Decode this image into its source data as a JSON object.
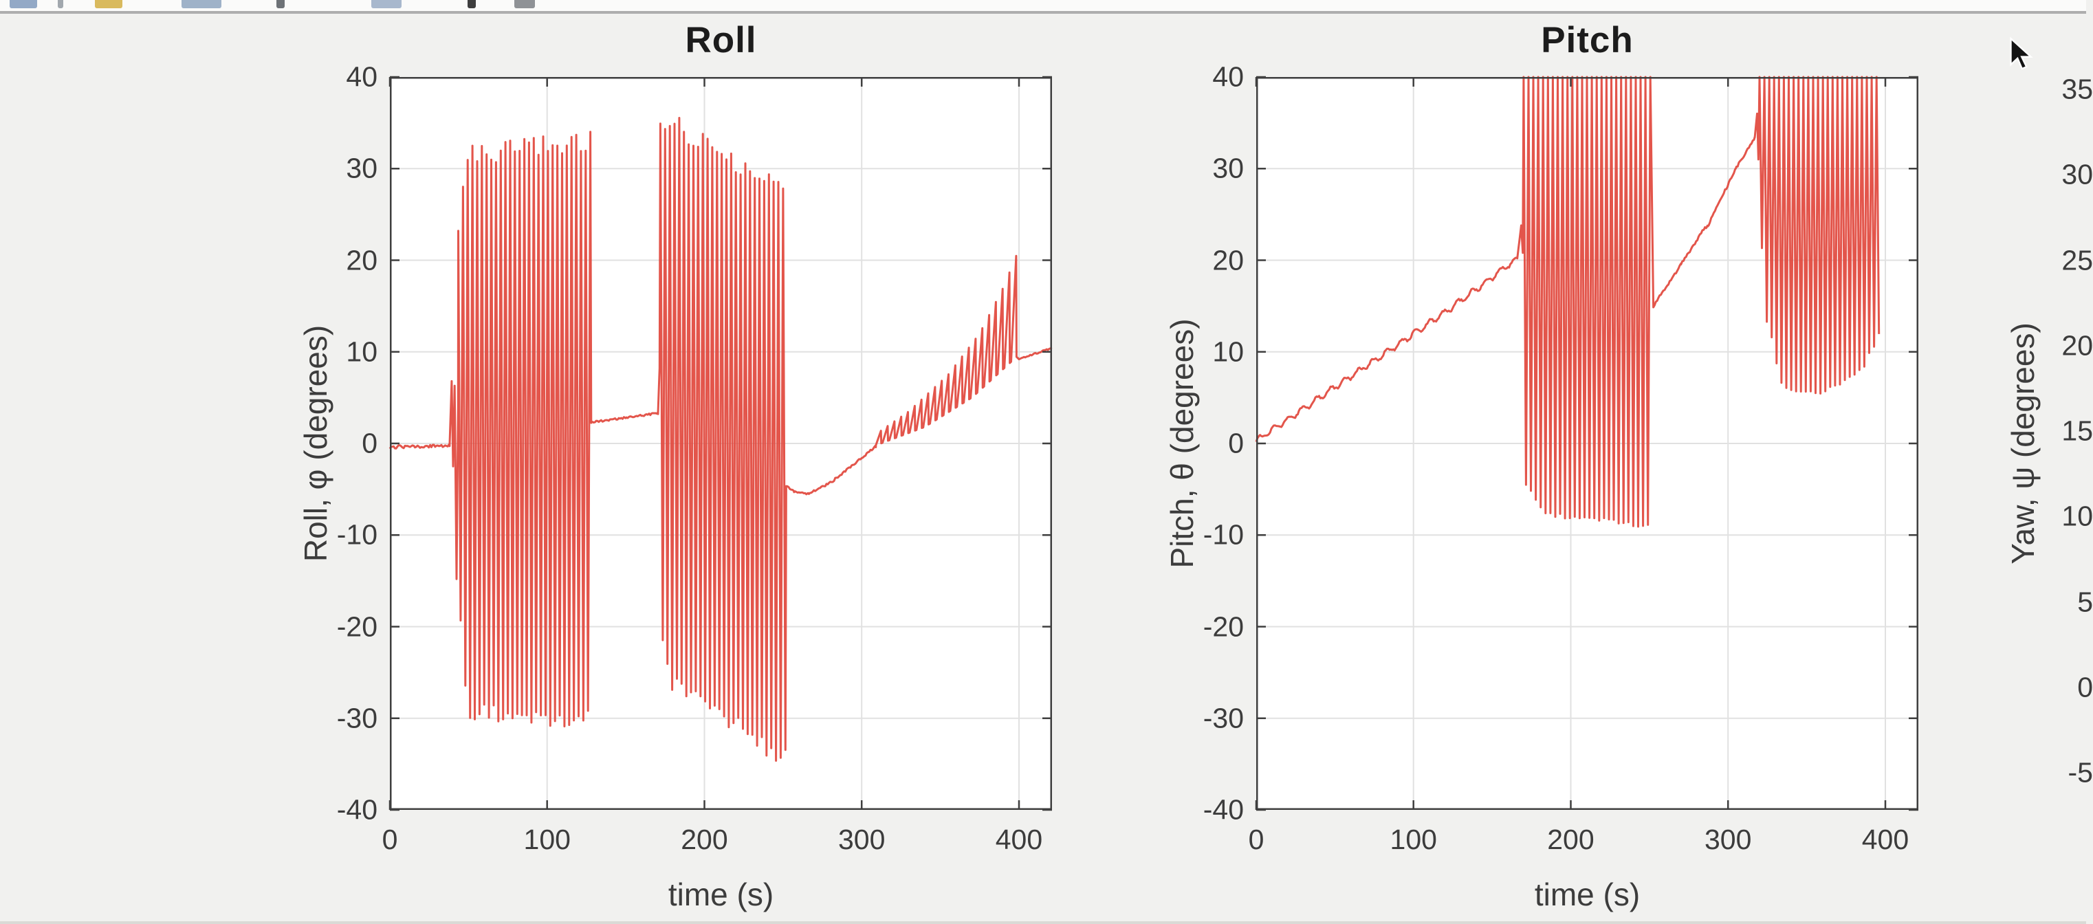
{
  "window": {
    "cursor": "arrow-pointer"
  },
  "toolbar": {
    "icons": [
      {
        "name": "new-doc-icon",
        "x": 14,
        "w": 40,
        "color": "#93a9c6"
      },
      {
        "name": "toolbar-sliver-icon",
        "x": 84,
        "w": 8,
        "color": "#a2a8ae"
      },
      {
        "name": "open-folder-icon",
        "x": 138,
        "w": 40,
        "color": "#d9ba5e"
      },
      {
        "name": "save-icon",
        "x": 264,
        "w": 58,
        "color": "#9fb2c8"
      },
      {
        "name": "print-icon",
        "x": 402,
        "w": 12,
        "color": "#6e7277"
      },
      {
        "name": "zoom-tools-icon",
        "x": 540,
        "w": 44,
        "color": "#a8b8cd"
      },
      {
        "name": "pointer-tool-icon",
        "x": 680,
        "w": 12,
        "color": "#3e3e3e"
      },
      {
        "name": "pan-tool-icon",
        "x": 748,
        "w": 30,
        "color": "#8f9296"
      }
    ]
  },
  "figure": {
    "background": "#f1f1ef",
    "plot_background": "#ffffff",
    "grid_color": "#e1e1e1",
    "axis_color": "#3f3f3f",
    "text_color": "#3c3c3c",
    "line_color": "#e1473c"
  },
  "chart_data": [
    {
      "type": "line",
      "title": "Roll",
      "xlabel": "time (s)",
      "ylabel": "Roll, φ (degrees)",
      "xlim": [
        0,
        421
      ],
      "ylim": [
        -40,
        40
      ],
      "xticks": [
        0,
        100,
        200,
        300,
        400
      ],
      "yticks": [
        40,
        30,
        20,
        10,
        0,
        -10,
        -20,
        -30,
        -40
      ],
      "grid": true,
      "legend": null,
      "series": [
        {
          "name": "roll",
          "color": "#e1473c",
          "segments": [
            {
              "type": "line",
              "pts": [
                [
                  0,
                  -0.4
                ],
                [
                  20,
                  -0.3
                ],
                [
                  38,
                  -0.2
                ]
              ],
              "noise": 0.18
            },
            {
              "type": "line",
              "pts": [
                [
                  38,
                  -0.2
                ],
                [
                  39.3,
                  6.8
                ],
                [
                  40.2,
                  -2.5
                ],
                [
                  41.2,
                  6.3
                ],
                [
                  42.4,
                  -14.8
                ],
                [
                  43.4,
                  4
                ]
              ]
            },
            {
              "type": "osc",
              "t": [
                43.5,
                128
              ],
              "period": 3.0,
              "top": [
                [
                  43.5,
                  24
                ],
                [
                  48,
                  31.3
                ],
                [
                  90,
                  32.3
                ],
                [
                  128,
                  33
                ]
              ],
              "bot": [
                [
                  43.5,
                  -15
                ],
                [
                  49,
                  -29
                ],
                [
                  100,
                  -30.6
                ],
                [
                  128,
                  -30
                ]
              ]
            },
            {
              "type": "line",
              "pts": [
                [
                  128,
                  2.3
                ],
                [
                  150,
                  2.8
                ],
                [
                  170.5,
                  3.3
                ]
              ],
              "noise": 0.1
            },
            {
              "type": "line",
              "pts": [
                [
                  170.5,
                  3.3
                ],
                [
                  171.5,
                  8.2
                ]
              ]
            },
            {
              "type": "osc",
              "t": [
                172,
                252
              ],
              "period": 3.0,
              "top": [
                [
                  172,
                  33.8
                ],
                [
                  180,
                  34.8
                ],
                [
                  210,
                  31.5
                ],
                [
                  252,
                  27.6
                ]
              ],
              "bot": [
                [
                  172,
                  -20
                ],
                [
                  178,
                  -26
                ],
                [
                  215,
                  -30
                ],
                [
                  252,
                  -34.6
                ]
              ]
            },
            {
              "type": "line",
              "pts": [
                [
                  252,
                  -4.7
                ],
                [
                  257,
                  -5.3
                ],
                [
                  266,
                  -5.5
                ],
                [
                  280,
                  -4.3
                ],
                [
                  295,
                  -2.3
                ],
                [
                  309,
                  -0.3
                ]
              ],
              "noise": 0.12
            },
            {
              "type": "saw",
              "t": [
                309,
                400
              ],
              "period": 4.3,
              "base": [
                [
                  309,
                  -0.2
                ],
                [
                  340,
                  1.8
                ],
                [
                  370,
                  5
                ],
                [
                  400,
                  9.7
                ]
              ],
              "peak": [
                [
                  309,
                  1
                ],
                [
                  330,
                  3.5
                ],
                [
                  355,
                  7.5
                ],
                [
                  375,
                  12
                ],
                [
                  390,
                  17
                ],
                [
                  399,
                  20.8
                ]
              ]
            },
            {
              "type": "line",
              "pts": [
                [
                  400,
                  9.2
                ],
                [
                  412,
                  9.9
                ],
                [
                  421,
                  10.4
                ]
              ],
              "noise": 0.08
            }
          ]
        }
      ]
    },
    {
      "type": "line",
      "title": "Pitch",
      "xlabel": "time (s)",
      "ylabel": "Pitch, θ (degrees)",
      "xlim": [
        0,
        421
      ],
      "ylim": [
        -40,
        40
      ],
      "xticks": [
        0,
        100,
        200,
        300,
        400
      ],
      "yticks": [
        40,
        30,
        20,
        10,
        0,
        -10,
        -20,
        -30,
        -40
      ],
      "grid": true,
      "legend": null,
      "series": [
        {
          "name": "pitch",
          "color": "#e1473c",
          "segments": [
            {
              "type": "line",
              "pts": [
                [
                  0,
                  0.3
                ],
                [
                  60,
                  7.3
                ],
                [
                  120,
                  14.3
                ],
                [
                  166,
                  20.2
                ]
              ],
              "wiggle": 0.3,
              "wperiod": 9,
              "noise": 0.12
            },
            {
              "type": "line",
              "pts": [
                [
                  166,
                  20.2
                ],
                [
                  168.5,
                  23.8
                ],
                [
                  169.5,
                  20.8
                ]
              ]
            },
            {
              "type": "osc",
              "t": [
                170,
                252
              ],
              "period": 3.1,
              "top": [
                [
                  170,
                  43
                ],
                [
                  252,
                  43
                ]
              ],
              "bot": [
                [
                  170,
                  -4
                ],
                [
                  185,
                  -7.8
                ],
                [
                  215,
                  -8.3
                ],
                [
                  245,
                  -9
                ],
                [
                  252,
                  -9
                ]
              ]
            },
            {
              "type": "line",
              "pts": [
                [
                  252.5,
                  15
                ],
                [
                  270,
                  19.5
                ],
                [
                  285,
                  23.5
                ],
                [
                  287,
                  23.7
                ],
                [
                  305,
                  30
                ],
                [
                  317,
                  33.4
                ]
              ],
              "noise": 0.15
            },
            {
              "type": "line",
              "pts": [
                [
                  317,
                  33.4
                ],
                [
                  318.5,
                  36
                ],
                [
                  319.3,
                  31
                ]
              ]
            },
            {
              "type": "osc",
              "t": [
                320,
                397
              ],
              "period": 3.1,
              "top": [
                [
                  320,
                  43
                ],
                [
                  397,
                  43
                ]
              ],
              "bot": [
                [
                  320,
                  26
                ],
                [
                  324,
                  14
                ],
                [
                  335,
                  6
                ],
                [
                  360,
                  5.5
                ],
                [
                  385,
                  8
                ],
                [
                  397,
                  12
                ]
              ]
            }
          ]
        }
      ]
    },
    {
      "type": "line",
      "title": "",
      "xlabel": "",
      "ylabel": "Yaw, ψ (degrees)",
      "yticks": [
        35,
        30,
        25,
        20,
        15,
        10,
        5,
        0,
        -5
      ],
      "xticks": [],
      "grid": true,
      "series": [],
      "visible_portion": "y-axis label and tick labels only; plot box cut off at right screen edge"
    }
  ]
}
